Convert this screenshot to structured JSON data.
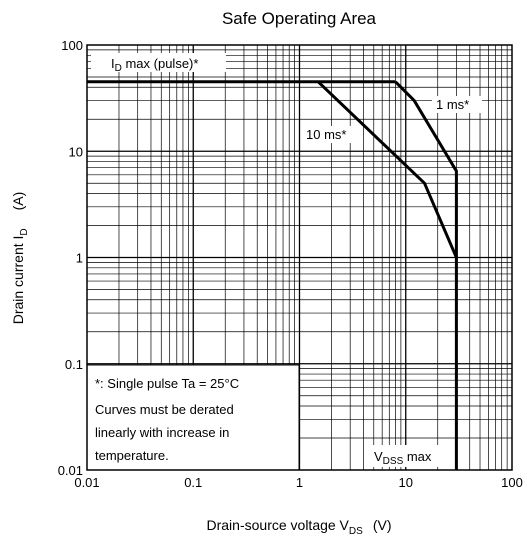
{
  "chart_data": {
    "type": "line",
    "title": "Safe Operating Area",
    "xlabel": {
      "main": "Drain-source voltage  V",
      "sub": "DS",
      "unit": "(V)"
    },
    "ylabel": {
      "main": "Drain current  I",
      "sub": "D",
      "unit": "(A)"
    },
    "x_scale": "log",
    "y_scale": "log",
    "xlim": [
      0.01,
      100
    ],
    "ylim": [
      0.01,
      100
    ],
    "grid": true,
    "x_ticks": [
      "0.01",
      "0.1",
      "1",
      "10",
      "100"
    ],
    "y_ticks": [
      "0.01",
      "0.1",
      "1",
      "10",
      "100"
    ],
    "series": [
      {
        "name": "I_D max (pulse)*",
        "points": [
          [
            0.01,
            45
          ],
          [
            8,
            45
          ]
        ]
      },
      {
        "name": "1 ms*",
        "points": [
          [
            8,
            45
          ],
          [
            12,
            30
          ],
          [
            30,
            6.5
          ],
          [
            30,
            0.01
          ]
        ]
      },
      {
        "name": "10 ms*",
        "points": [
          [
            1.5,
            45
          ],
          [
            15,
            5
          ],
          [
            30,
            1
          ]
        ]
      }
    ],
    "annotations": {
      "id_max_main": "I",
      "id_max_sub": "D",
      "id_max_rest": " max (pulse)*",
      "one_ms": "1 ms*",
      "ten_ms": "10 ms*",
      "vdss_main": "V",
      "vdss_sub": "DSS",
      "vdss_rest": " max",
      "note_line1": "*:  Single pulse    Ta = 25°C",
      "note_line2": "Curves must be derated",
      "note_line3": "linearly with increase in",
      "note_line4": "temperature."
    }
  }
}
